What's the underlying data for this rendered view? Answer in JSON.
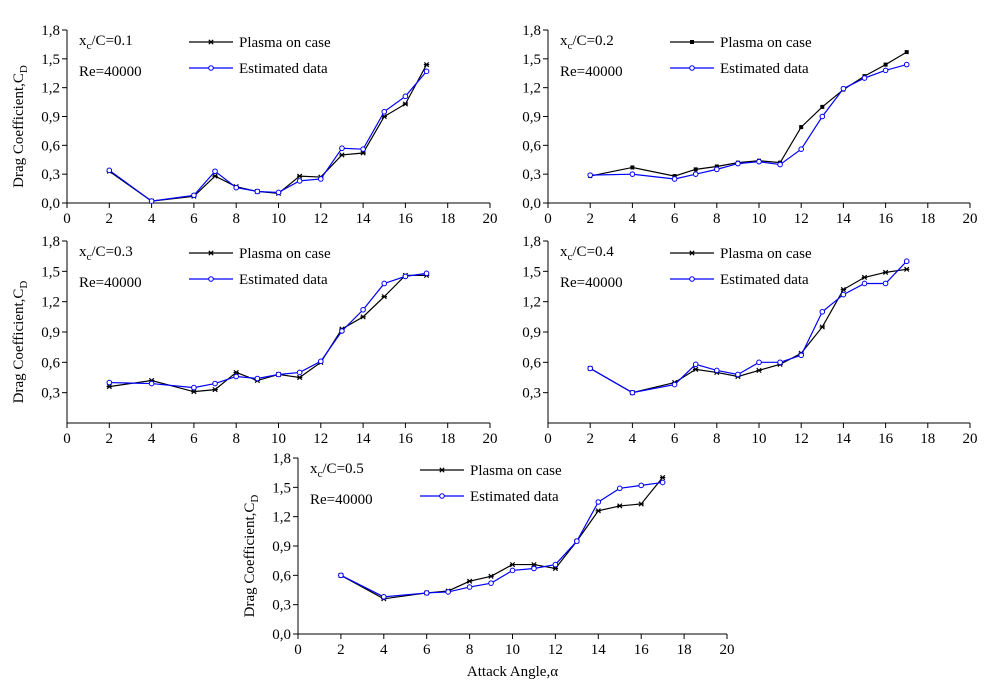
{
  "chart_data": [
    {
      "type": "line",
      "annotation": [
        "x",
        "c",
        "/C=0.1"
      ],
      "reynolds": "Re=40000",
      "ylabel": [
        "Drag Coefficient,C",
        "D"
      ],
      "x": [
        2,
        4,
        6,
        7,
        8,
        9,
        10,
        11,
        12,
        13,
        14,
        15,
        16,
        17
      ],
      "xlim": [
        0,
        20
      ],
      "xticks": [
        0,
        2,
        4,
        6,
        8,
        10,
        12,
        14,
        16,
        18,
        20
      ],
      "ylim": [
        0,
        1.8
      ],
      "yticks": [
        {
          "value": 0,
          "label": "0,0"
        },
        {
          "value": 0.3,
          "label": "0,3"
        },
        {
          "value": 0.6,
          "label": "0,6"
        },
        {
          "value": 0.9,
          "label": "0,9"
        },
        {
          "value": 1.2,
          "label": "1,2"
        },
        {
          "value": 1.5,
          "label": "1,5"
        },
        {
          "value": 1.8,
          "label": "1,8"
        }
      ],
      "series": [
        {
          "name": "Plasma on case",
          "color": "#000000",
          "marker": "star",
          "values": [
            0.33,
            0.02,
            0.07,
            0.28,
            0.17,
            0.12,
            0.1,
            0.28,
            0.27,
            0.5,
            0.52,
            0.9,
            1.03,
            1.44
          ]
        },
        {
          "name": "Estimated data",
          "color": "#0000ff",
          "marker": "circle",
          "values": [
            0.34,
            0.02,
            0.08,
            0.33,
            0.16,
            0.12,
            0.11,
            0.23,
            0.25,
            0.57,
            0.56,
            0.95,
            1.11,
            1.37
          ]
        }
      ]
    },
    {
      "type": "line",
      "annotation": [
        "x",
        "c",
        "/C=0.2"
      ],
      "reynolds": "Re=40000",
      "x": [
        2,
        4,
        6,
        7,
        8,
        9,
        10,
        11,
        12,
        13,
        14,
        15,
        16,
        17
      ],
      "xlim": [
        0,
        20
      ],
      "xticks": [
        0,
        2,
        4,
        6,
        8,
        10,
        12,
        14,
        16,
        18,
        20
      ],
      "ylim": [
        0,
        1.8
      ],
      "yticks": [
        {
          "value": 0,
          "label": "0,0"
        },
        {
          "value": 0.3,
          "label": "0,3"
        },
        {
          "value": 0.6,
          "label": "0,6"
        },
        {
          "value": 0.9,
          "label": "0,9"
        },
        {
          "value": 1.2,
          "label": "1,2"
        },
        {
          "value": 1.5,
          "label": "1,5"
        },
        {
          "value": 1.8,
          "label": "1,8"
        }
      ],
      "series": [
        {
          "name": "Plasma on case",
          "color": "#000000",
          "marker": "square",
          "values": [
            0.28,
            0.37,
            0.28,
            0.35,
            0.38,
            0.42,
            0.44,
            0.42,
            0.79,
            1.0,
            1.18,
            1.32,
            1.44,
            1.57
          ]
        },
        {
          "name": "Estimated data",
          "color": "#0000ff",
          "marker": "circle",
          "values": [
            0.29,
            0.3,
            0.25,
            0.3,
            0.35,
            0.41,
            0.43,
            0.4,
            0.56,
            0.9,
            1.19,
            1.3,
            1.38,
            1.44
          ]
        }
      ]
    },
    {
      "type": "line",
      "annotation": [
        "x",
        "c",
        "/C=0.3"
      ],
      "reynolds": "Re=40000",
      "ylabel": [
        "Drag Coefficient,C",
        "D"
      ],
      "x": [
        2,
        4,
        6,
        7,
        8,
        9,
        10,
        11,
        12,
        13,
        14,
        15,
        16,
        17
      ],
      "xlim": [
        0,
        20
      ],
      "xticks": [
        0,
        2,
        4,
        6,
        8,
        10,
        12,
        14,
        16,
        18,
        20
      ],
      "ylim": [
        0,
        1.8
      ],
      "yticks": [
        {
          "value": 0.3,
          "label": "0,3"
        },
        {
          "value": 0.6,
          "label": "0,6"
        },
        {
          "value": 0.9,
          "label": "0,9"
        },
        {
          "value": 1.2,
          "label": "1,2"
        },
        {
          "value": 1.5,
          "label": "1,5"
        },
        {
          "value": 1.8,
          "label": "1,8"
        }
      ],
      "series": [
        {
          "name": "Plasma on case",
          "color": "#000000",
          "marker": "star",
          "values": [
            0.36,
            0.42,
            0.31,
            0.33,
            0.5,
            0.42,
            0.48,
            0.45,
            0.6,
            0.93,
            1.05,
            1.25,
            1.46,
            1.46
          ]
        },
        {
          "name": "Estimated data",
          "color": "#0000ff",
          "marker": "circle",
          "values": [
            0.4,
            0.39,
            0.35,
            0.39,
            0.46,
            0.44,
            0.48,
            0.5,
            0.61,
            0.91,
            1.12,
            1.38,
            1.45,
            1.48
          ]
        }
      ]
    },
    {
      "type": "line",
      "annotation": [
        "x",
        "c",
        "/C=0.4"
      ],
      "reynolds": "Re=40000",
      "x": [
        2,
        4,
        6,
        7,
        8,
        9,
        10,
        11,
        12,
        13,
        14,
        15,
        16,
        17
      ],
      "xlim": [
        0,
        20
      ],
      "xticks": [
        0,
        2,
        4,
        6,
        8,
        10,
        12,
        14,
        16,
        18,
        20
      ],
      "ylim": [
        0,
        1.8
      ],
      "yticks": [
        {
          "value": 0.3,
          "label": "0,3"
        },
        {
          "value": 0.6,
          "label": "0,6"
        },
        {
          "value": 0.9,
          "label": "0,9"
        },
        {
          "value": 1.2,
          "label": "1,2"
        },
        {
          "value": 1.5,
          "label": "1,5"
        },
        {
          "value": 1.8,
          "label": "1,8"
        }
      ],
      "series": [
        {
          "name": "Plasma on case",
          "color": "#000000",
          "marker": "star",
          "values": [
            0.54,
            0.3,
            0.4,
            0.53,
            0.5,
            0.46,
            0.52,
            0.58,
            0.69,
            0.95,
            1.32,
            1.44,
            1.49,
            1.52
          ]
        },
        {
          "name": "Estimated data",
          "color": "#0000ff",
          "marker": "circle",
          "values": [
            0.54,
            0.3,
            0.38,
            0.58,
            0.52,
            0.48,
            0.6,
            0.6,
            0.67,
            1.1,
            1.27,
            1.38,
            1.38,
            1.6
          ]
        }
      ]
    },
    {
      "type": "line",
      "annotation": [
        "x",
        "c",
        "/C=0.5"
      ],
      "reynolds": "Re=40000",
      "ylabel": [
        "Drag Coefficient,C",
        "D"
      ],
      "xlabel": "Attack Angle,α",
      "x": [
        2,
        4,
        6,
        7,
        8,
        9,
        10,
        11,
        12,
        13,
        14,
        15,
        16,
        17
      ],
      "xlim": [
        0,
        20
      ],
      "xticks": [
        0,
        2,
        4,
        6,
        8,
        10,
        12,
        14,
        16,
        18,
        20
      ],
      "ylim": [
        0,
        1.8
      ],
      "yticks": [
        {
          "value": 0,
          "label": "0,0"
        },
        {
          "value": 0.3,
          "label": "0,3"
        },
        {
          "value": 0.6,
          "label": "0,6"
        },
        {
          "value": 0.9,
          "label": "0,9"
        },
        {
          "value": 1.2,
          "label": "1,2"
        },
        {
          "value": 1.5,
          "label": "1,5"
        },
        {
          "value": 1.8,
          "label": "1,8"
        }
      ],
      "series": [
        {
          "name": "Plasma on case",
          "color": "#000000",
          "marker": "star",
          "values": [
            0.6,
            0.36,
            0.42,
            0.44,
            0.54,
            0.59,
            0.71,
            0.71,
            0.67,
            0.95,
            1.26,
            1.31,
            1.33,
            1.6
          ]
        },
        {
          "name": "Estimated data",
          "color": "#0000ff",
          "marker": "circle",
          "values": [
            0.6,
            0.38,
            0.42,
            0.43,
            0.48,
            0.52,
            0.65,
            0.67,
            0.71,
            0.95,
            1.35,
            1.49,
            1.52,
            1.55
          ]
        }
      ]
    }
  ]
}
